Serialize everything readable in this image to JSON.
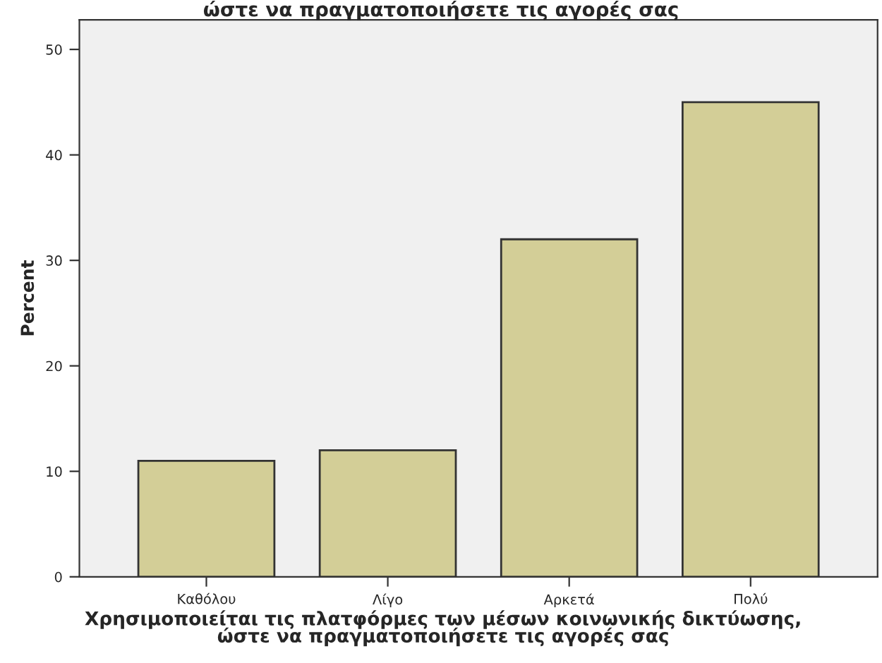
{
  "chart_data": {
    "type": "bar",
    "title": "ώστε να πραγματοποιήσετε τις αγορές σας",
    "xlabel": "Χρησιμοποιείται τις πλατφόρμες των μέσων κοινωνικής δικτύωσης,\nώστε να πραγματοποιήσετε τις αγορές σας",
    "ylabel": "Percent",
    "categories": [
      "Καθόλου",
      "Λίγο",
      "Αρκετά",
      "Πολύ"
    ],
    "values": [
      11,
      12,
      32,
      45
    ],
    "color": "#d3ce97",
    "ylim": [
      0,
      52.8
    ],
    "yticks": [
      0,
      10,
      20,
      30,
      40,
      50
    ],
    "grid": false
  }
}
